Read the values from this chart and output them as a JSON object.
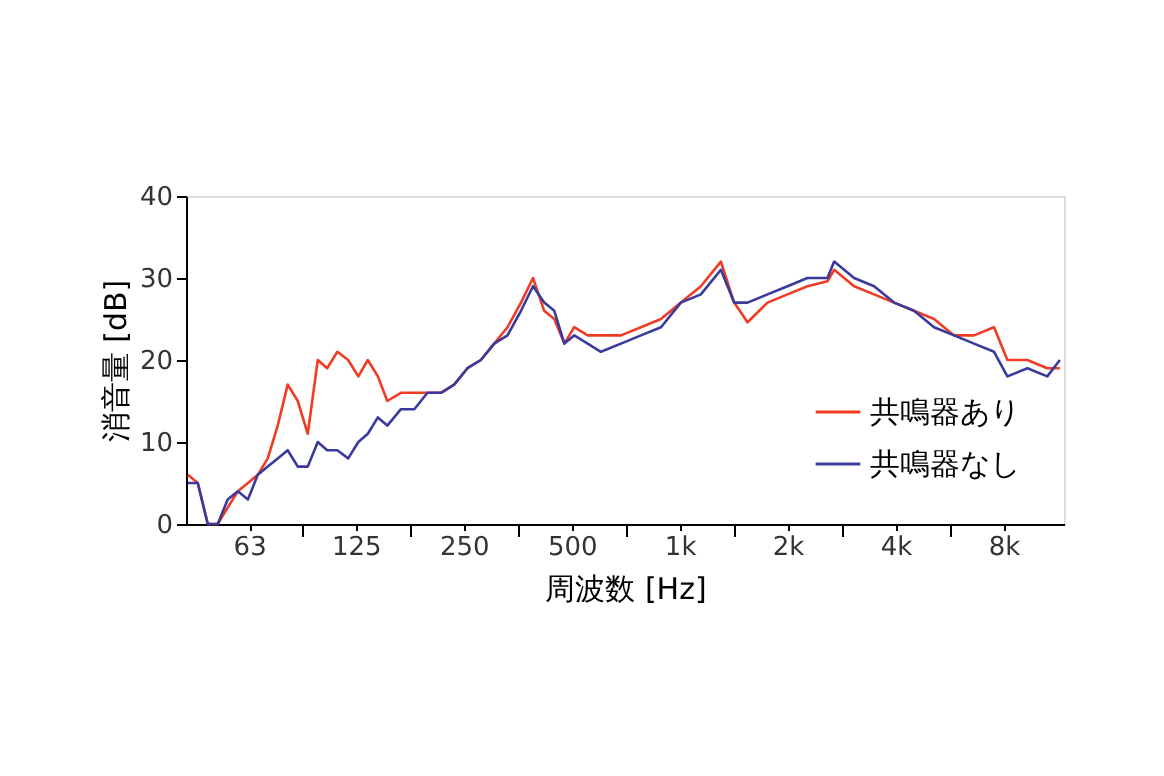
{
  "chart_data": {
    "type": "line",
    "xlabel": "周波数 [Hz]",
    "ylabel": "消音量 [dB]",
    "log": "x",
    "grid": false,
    "legend": "bottom right",
    "marker": "none",
    "line_style": "solid",
    "xlim": [
      42,
      11800
    ],
    "ylim": [
      0,
      40
    ],
    "yticks": [
      0,
      10,
      20,
      30,
      40
    ],
    "xticks": [
      {
        "value": 63,
        "label": "63"
      },
      {
        "value": 89,
        "label": null
      },
      {
        "value": 125,
        "label": "125"
      },
      {
        "value": 177,
        "label": null
      },
      {
        "value": 250,
        "label": "250"
      },
      {
        "value": 355,
        "label": null
      },
      {
        "value": 500,
        "label": "500"
      },
      {
        "value": 710,
        "label": null
      },
      {
        "value": 1000,
        "label": "1k"
      },
      {
        "value": 1420,
        "label": null
      },
      {
        "value": 2000,
        "label": "2k"
      },
      {
        "value": 2840,
        "label": null
      },
      {
        "value": 4000,
        "label": "4k"
      },
      {
        "value": 5680,
        "label": null
      },
      {
        "value": 8000,
        "label": "8k"
      }
    ],
    "x": [
      42.5,
      45.3,
      48.3,
      51.5,
      54.9,
      58.6,
      62.5,
      66.6,
      71.0,
      75.7,
      80.7,
      86.1,
      91.8,
      97.9,
      104,
      111,
      119,
      127,
      135,
      144,
      153,
      167,
      182,
      198,
      216,
      235,
      256,
      279,
      304,
      331,
      361,
      390,
      419,
      447,
      477,
      508,
      554,
      603,
      686,
      780,
      887,
      1008,
      1146,
      1303,
      1419,
      1546,
      1758,
      1999,
      2272,
      2584,
      2697,
      3066,
      3486,
      3963,
      4505,
      5122,
      5825,
      6622,
      7530,
      8203,
      9328,
      10600,
      11490
    ],
    "series": [
      {
        "name": "共鳴器あり",
        "color": "#f03c24",
        "values": [
          6,
          5,
          0,
          0,
          2,
          4,
          5,
          6,
          8,
          12,
          17,
          15,
          11,
          20,
          19,
          21,
          20,
          18,
          20,
          18,
          15,
          16,
          16,
          16,
          16,
          17,
          19,
          20,
          22,
          24,
          27,
          30,
          26,
          25,
          22,
          24,
          23,
          23,
          23,
          24,
          25,
          27,
          29,
          32,
          27,
          24.6,
          27,
          28,
          29,
          29.6,
          31,
          29,
          28,
          27,
          26,
          25,
          23,
          23,
          24,
          20,
          20,
          19,
          19
        ]
      },
      {
        "name": "共鳴器なし",
        "color": "#3a3a9c",
        "values": [
          5,
          5,
          0,
          0,
          3,
          4,
          3,
          6,
          7,
          8,
          9,
          7,
          7,
          10,
          9,
          9,
          8,
          10,
          11,
          13,
          12,
          14,
          14,
          16,
          16,
          17,
          19,
          20,
          22,
          23,
          26,
          29,
          27,
          26,
          22,
          23,
          22,
          21,
          22,
          23,
          24,
          27,
          28,
          31,
          27,
          27,
          28,
          29,
          30,
          30,
          32,
          30,
          29,
          27,
          26,
          24,
          23,
          22,
          21,
          18,
          19,
          18,
          20
        ]
      }
    ]
  }
}
